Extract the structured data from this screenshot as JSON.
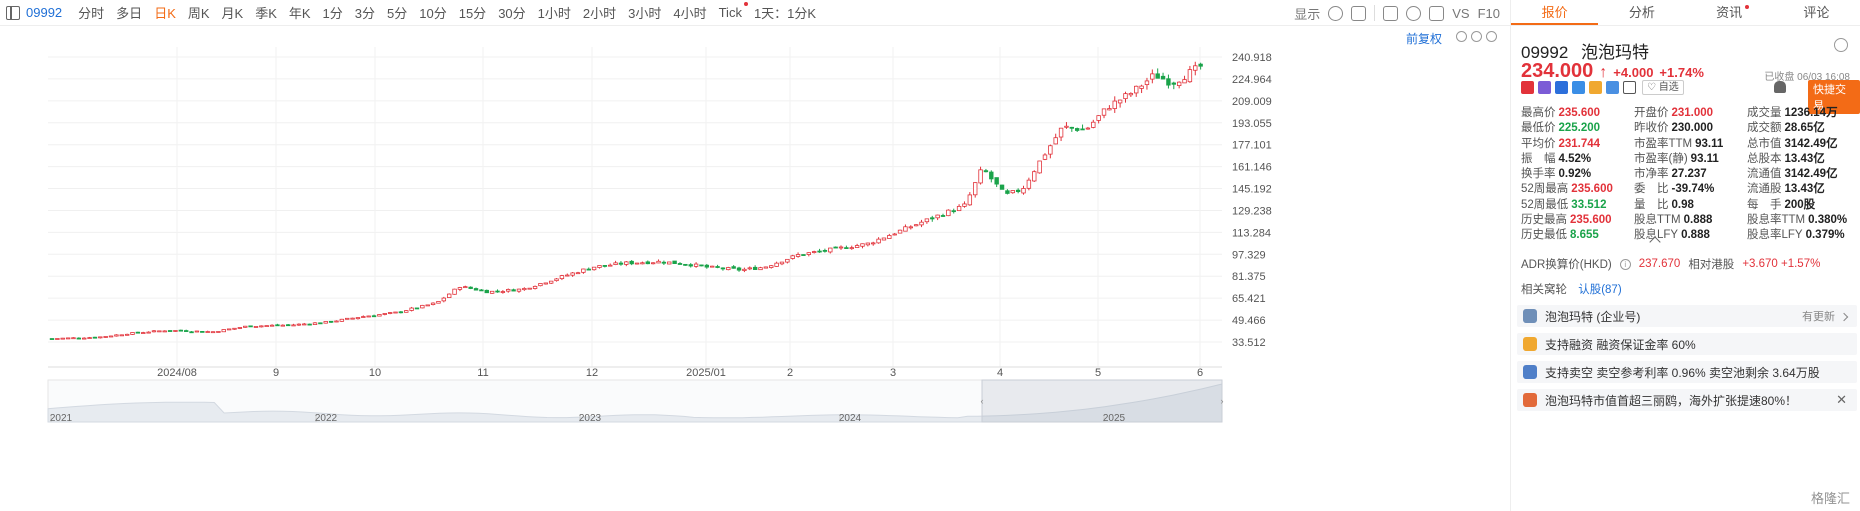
{
  "toolbar": {
    "code": "09992",
    "periods": [
      "分时",
      "多日",
      "日K",
      "周K",
      "月K",
      "季K",
      "年K",
      "1分",
      "3分",
      "5分",
      "10分",
      "15分",
      "30分",
      "1小时",
      "2小时",
      "3小时",
      "4小时",
      "Tick",
      "1天：1分K"
    ],
    "active_period": "日K",
    "display_label": "显示",
    "vs_label": "VS",
    "f10_label": "F10"
  },
  "chart": {
    "restore_label": "前复权",
    "y_ticks": [
      "240.918",
      "224.964",
      "209.009",
      "193.055",
      "177.101",
      "161.146",
      "145.192",
      "129.238",
      "113.284",
      "97.329",
      "81.375",
      "65.421",
      "49.466",
      "33.512"
    ],
    "x_ticks": [
      "2024/08",
      "9",
      "10",
      "11",
      "12",
      "2025/01",
      "2",
      "3",
      "4",
      "5",
      "6"
    ],
    "overview_years": [
      "2021",
      "2022",
      "2023",
      "2024",
      "2025"
    ]
  },
  "chart_data": {
    "type": "candlestick",
    "ylim": [
      33.512,
      240.918
    ],
    "up_color": "#e2323a",
    "down_color": "#1aa34a",
    "close_path": [
      [
        0,
        36
      ],
      [
        0.04,
        37
      ],
      [
        0.07,
        40
      ],
      [
        0.1,
        42
      ],
      [
        0.14,
        41
      ],
      [
        0.17,
        45
      ],
      [
        0.21,
        46
      ],
      [
        0.24,
        48
      ],
      [
        0.27,
        52
      ],
      [
        0.3,
        55
      ],
      [
        0.335,
        62
      ],
      [
        0.355,
        74
      ],
      [
        0.38,
        70
      ],
      [
        0.41,
        72
      ],
      [
        0.44,
        80
      ],
      [
        0.47,
        88
      ],
      [
        0.5,
        91
      ],
      [
        0.53,
        92
      ],
      [
        0.555,
        90
      ],
      [
        0.57,
        88
      ],
      [
        0.6,
        86
      ],
      [
        0.62,
        88
      ],
      [
        0.65,
        97
      ],
      [
        0.68,
        101
      ],
      [
        0.71,
        105
      ],
      [
        0.74,
        115
      ],
      [
        0.77,
        125
      ],
      [
        0.795,
        133
      ],
      [
        0.81,
        160
      ],
      [
        0.83,
        140
      ],
      [
        0.845,
        145
      ],
      [
        0.86,
        165
      ],
      [
        0.88,
        190
      ],
      [
        0.9,
        188
      ],
      [
        0.92,
        205
      ],
      [
        0.94,
        215
      ],
      [
        0.96,
        228
      ],
      [
        0.975,
        222
      ],
      [
        1.0,
        234
      ]
    ]
  },
  "tabs": [
    "报价",
    "分析",
    "资讯",
    "评论"
  ],
  "stock": {
    "code": "09992",
    "name": "泡泡玛特",
    "price": "234.000",
    "arrow": "↑",
    "change": "+4.000",
    "change_pct": "+1.74%",
    "status": "已收盘 06/03 16:08",
    "fav_label": "自选",
    "quick_trade": "快捷交易"
  },
  "stats": [
    [
      {
        "l": "最高价",
        "v": "235.600",
        "c": "red"
      },
      {
        "l": "开盘价",
        "v": "231.000",
        "c": "red"
      },
      {
        "l": "成交量",
        "v": "1236.14万",
        "c": ""
      }
    ],
    [
      {
        "l": "最低价",
        "v": "225.200",
        "c": "green"
      },
      {
        "l": "昨收价",
        "v": "230.000",
        "c": ""
      },
      {
        "l": "成交额",
        "v": "28.65亿",
        "c": ""
      }
    ],
    [
      {
        "l": "平均价",
        "v": "231.744",
        "c": "red"
      },
      {
        "l": "市盈率TTM",
        "v": "93.11",
        "c": ""
      },
      {
        "l": "总市值",
        "v": "3142.49亿",
        "c": ""
      }
    ],
    [
      {
        "l": "振　幅",
        "v": "4.52%",
        "c": ""
      },
      {
        "l": "市盈率(静)",
        "v": "93.11",
        "c": ""
      },
      {
        "l": "总股本",
        "v": "13.43亿",
        "c": ""
      }
    ],
    [
      {
        "l": "换手率",
        "v": "0.92%",
        "c": ""
      },
      {
        "l": "市净率",
        "v": "27.237",
        "c": ""
      },
      {
        "l": "流通值",
        "v": "3142.49亿",
        "c": ""
      }
    ],
    [
      {
        "l": "52周最高",
        "v": "235.600",
        "c": "red"
      },
      {
        "l": "委　比",
        "v": "-39.74%",
        "c": ""
      },
      {
        "l": "流通股",
        "v": "13.43亿",
        "c": ""
      }
    ],
    [
      {
        "l": "52周最低",
        "v": "33.512",
        "c": "green"
      },
      {
        "l": "量　比",
        "v": "0.98",
        "c": ""
      },
      {
        "l": "每　手",
        "v": "200股",
        "c": ""
      }
    ],
    [
      {
        "l": "历史最高",
        "v": "235.600",
        "c": "red"
      },
      {
        "l": "股息TTM",
        "v": "0.888",
        "c": ""
      },
      {
        "l": "股息率TTM",
        "v": "0.380%",
        "c": ""
      }
    ],
    [
      {
        "l": "历史最低",
        "v": "8.655",
        "c": "green"
      },
      {
        "l": "股息LFY",
        "v": "0.888",
        "c": ""
      },
      {
        "l": "股息率LFY",
        "v": "0.379%",
        "c": ""
      }
    ]
  ],
  "adr": {
    "label": "ADR换算价(HKD)",
    "value": "237.670",
    "rel_label": "相对港股",
    "rel_value": "+3.670 +1.57%"
  },
  "related": {
    "label": "相关窝轮",
    "link": "认股(87)"
  },
  "cards": [
    {
      "text": "泡泡玛特 (企业号)",
      "right": "有更新",
      "icon_color": "#6f8fb8"
    },
    {
      "text": "支持融资 融资保证金率 60%",
      "right": "",
      "icon_color": "#f0a830"
    },
    {
      "text": "支持卖空 卖空参考利率 0.96% 卖空池剩余 3.64万股",
      "right": "",
      "icon_color": "#4f7fc8"
    },
    {
      "text": "泡泡玛特市值首超三丽鸥，海外扩张提速80%！",
      "right": "",
      "icon_color": "#e26a3a"
    }
  ],
  "watermark": "格隆汇"
}
